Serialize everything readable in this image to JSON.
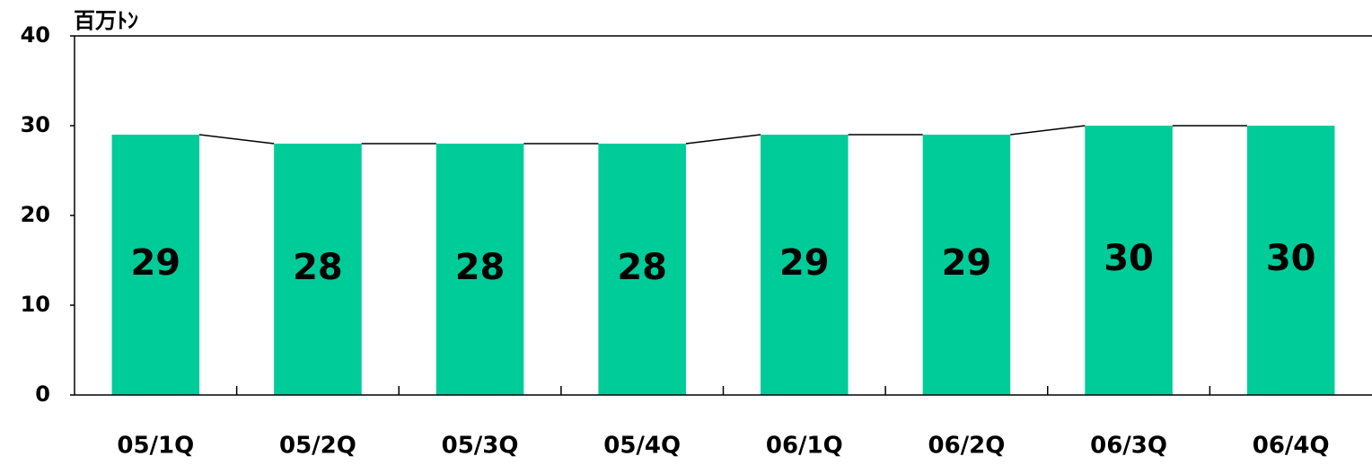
{
  "chart_data": {
    "type": "bar",
    "y_axis_label": "百万ﾄﾝ",
    "categories": [
      "05/1Q",
      "05/2Q",
      "05/3Q",
      "05/4Q",
      "06/1Q",
      "06/2Q",
      "06/3Q",
      "06/4Q"
    ],
    "values": [
      29,
      28,
      28,
      28,
      29,
      29,
      30,
      30
    ],
    "color": "#00cc99",
    "ylim": [
      0,
      40
    ],
    "yticks": [
      0,
      10,
      20,
      30,
      40
    ],
    "grid": false
  }
}
